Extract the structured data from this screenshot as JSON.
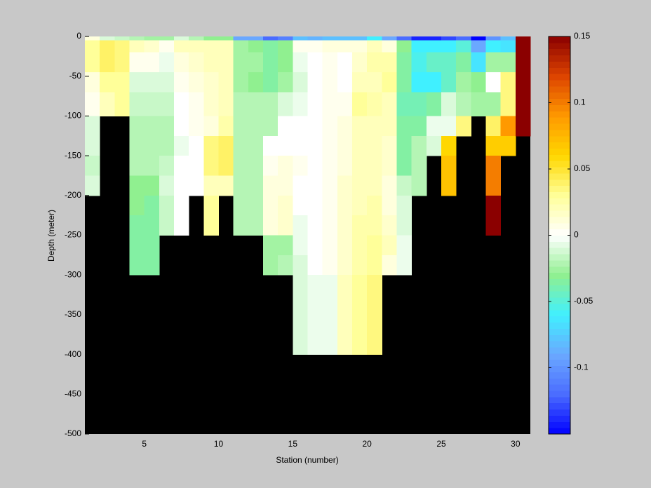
{
  "chart_data": {
    "type": "heatmap",
    "xlabel": "Station (number)",
    "ylabel": "Depth (meter)",
    "xlim": [
      1,
      31
    ],
    "ylim": [
      -500,
      0
    ],
    "xticks": [
      5,
      10,
      15,
      20,
      25,
      30
    ],
    "yticks": [
      0,
      -50,
      -100,
      -150,
      -200,
      -250,
      -300,
      -350,
      -400,
      -450,
      -500
    ],
    "x_edges": [
      1,
      2,
      3,
      4,
      5,
      6,
      7,
      8,
      9,
      10,
      11,
      12,
      13,
      14,
      15,
      16,
      17,
      18,
      19,
      20,
      21,
      22,
      23,
      24,
      25,
      26,
      27,
      28,
      29,
      30,
      31
    ],
    "y_edges": [
      0,
      -5,
      -20,
      -45,
      -70,
      -100,
      -125,
      -150,
      -175,
      -200,
      -225,
      -250,
      -275,
      -300,
      -325,
      -350,
      -375,
      -400
    ],
    "z": [
      [
        0.01,
        0.03,
        0.03,
        0.01,
        0.005,
        -0.01,
        -0.01,
        -0.015,
        -0.01
      ],
      [
        -0.01,
        0.04,
        0.04,
        0.03,
        0.02
      ],
      [
        -0.015,
        0.035,
        0.035,
        0.03,
        0.03
      ],
      [
        -0.02,
        0.02,
        0.005,
        -0.01,
        -0.015,
        -0.02,
        -0.02,
        -0.02,
        -0.03,
        -0.03,
        -0.035,
        -0.035,
        -0.035
      ],
      [
        -0.025,
        0.015,
        0.005,
        -0.01,
        -0.015,
        -0.02,
        -0.02,
        -0.02,
        -0.03,
        -0.035,
        -0.035,
        -0.035,
        -0.035
      ],
      [
        -0.025,
        0.005,
        -0.005,
        -0.01,
        -0.015,
        -0.02,
        -0.02,
        -0.015,
        -0.01,
        -0.015,
        -0.015
      ],
      [
        -0.01,
        0.02,
        0.01,
        0.005,
        0,
        0,
        -0.005,
        0,
        0,
        0,
        0
      ],
      [
        -0.02,
        0.02,
        0.015,
        0.01,
        0.005,
        0.005,
        0,
        0,
        0
      ],
      [
        -0.03,
        0.02,
        0.02,
        0.015,
        0.015,
        0.01,
        0.035,
        0.035,
        0.02,
        0.03,
        0.03
      ],
      [
        -0.03,
        0.02,
        0.02,
        0.02,
        0.02,
        0.025,
        0.04,
        0.04,
        0.02
      ],
      [
        -0.09,
        -0.025,
        -0.025,
        -0.025,
        -0.02,
        -0.02,
        -0.02,
        -0.02,
        -0.02,
        -0.02,
        -0.02
      ],
      [
        -0.09,
        -0.03,
        -0.025,
        -0.03,
        -0.02,
        -0.02,
        -0.02,
        -0.02,
        -0.02,
        -0.02,
        -0.02
      ],
      [
        -0.12,
        -0.035,
        -0.035,
        -0.035,
        -0.02,
        -0.02,
        0,
        0.005,
        0.01,
        0.01,
        0.01,
        -0.025,
        -0.025
      ],
      [
        -0.11,
        -0.03,
        -0.03,
        -0.025,
        -0.01,
        0,
        0,
        0.01,
        0.01,
        0.015,
        0.015,
        -0.025,
        -0.02
      ],
      [
        -0.08,
        0.005,
        -0.005,
        -0.01,
        -0.005,
        0,
        0,
        0.005,
        0,
        0,
        -0.005,
        -0.005,
        -0.01,
        -0.01,
        -0.01,
        -0.01,
        -0.01
      ],
      [
        -0.085,
        0.005,
        0,
        0,
        0,
        0,
        0,
        0,
        0,
        0,
        0,
        0,
        0,
        -0.005,
        -0.005,
        -0.005,
        -0.005
      ],
      [
        -0.08,
        0.01,
        0.005,
        0.005,
        0.005,
        0.005,
        0.005,
        0.005,
        0.005,
        0.005,
        0.005,
        0.005,
        0.005,
        -0.005,
        -0.005,
        -0.005,
        -0.005
      ],
      [
        -0.08,
        0.01,
        0,
        0,
        0.005,
        0.01,
        0.01,
        0.01,
        0.015,
        0.015,
        0.015,
        0.015,
        0.015,
        0.02,
        0.02,
        0.02,
        0.02
      ],
      [
        -0.08,
        0.01,
        0.015,
        0.02,
        0.03,
        0.02,
        0.02,
        0.02,
        0.02,
        0.02,
        0.025,
        0.025,
        0.025,
        0.03,
        0.03,
        0.03,
        0.03
      ],
      [
        -0.06,
        0.02,
        0.025,
        0.02,
        0.025,
        0.02,
        0.02,
        0.02,
        0.02,
        0.025,
        0.025,
        0.03,
        0.03,
        0.035,
        0.035,
        0.035,
        0.035
      ],
      [
        -0.09,
        0.01,
        0.025,
        0.03,
        0.02,
        0.02,
        0.015,
        0.015,
        0.01,
        0.01,
        0.015,
        0.02,
        0.01
      ],
      [
        -0.12,
        -0.03,
        -0.035,
        -0.035,
        -0.04,
        -0.035,
        -0.035,
        -0.035,
        -0.015,
        -0.01,
        -0.01,
        -0.005,
        -0.005
      ],
      [
        -0.14,
        -0.06,
        -0.055,
        -0.06,
        -0.04,
        -0.035,
        -0.02,
        -0.02,
        -0.02
      ],
      [
        -0.14,
        -0.06,
        -0.045,
        -0.06,
        -0.035,
        -0.005,
        -0.01
      ],
      [
        -0.13,
        -0.06,
        -0.045,
        -0.045,
        -0.01,
        -0.005,
        0.06,
        0.07,
        0.07
      ],
      [
        -0.12,
        -0.05,
        -0.035,
        -0.025,
        -0.02,
        0.035
      ],
      [
        -0.15,
        -0.09,
        -0.065,
        -0.03,
        -0.025
      ],
      [
        -0.1,
        -0.06,
        -0.025,
        0,
        -0.025,
        0.04,
        0.065,
        0.1,
        0.1,
        0.15,
        0.15
      ],
      [
        -0.08,
        -0.065,
        -0.025,
        0.035,
        0.035,
        0.09,
        0.065
      ],
      [
        0.15,
        0.15,
        0.15,
        0.15,
        0.15,
        0.15
      ]
    ],
    "clim": [
      -0.15,
      0.15
    ],
    "cticks": [
      -0.1,
      -0.05,
      0,
      0.05,
      0.1,
      0.15
    ],
    "colormap": [
      "#0000ff",
      "#4a6cff",
      "#6aa8ff",
      "#40f0ff",
      "#90f090",
      "#ffffff",
      "#ffff99",
      "#ffd700",
      "#ff9900",
      "#dd4400",
      "#8b0000"
    ],
    "nan_color": "#000000"
  }
}
